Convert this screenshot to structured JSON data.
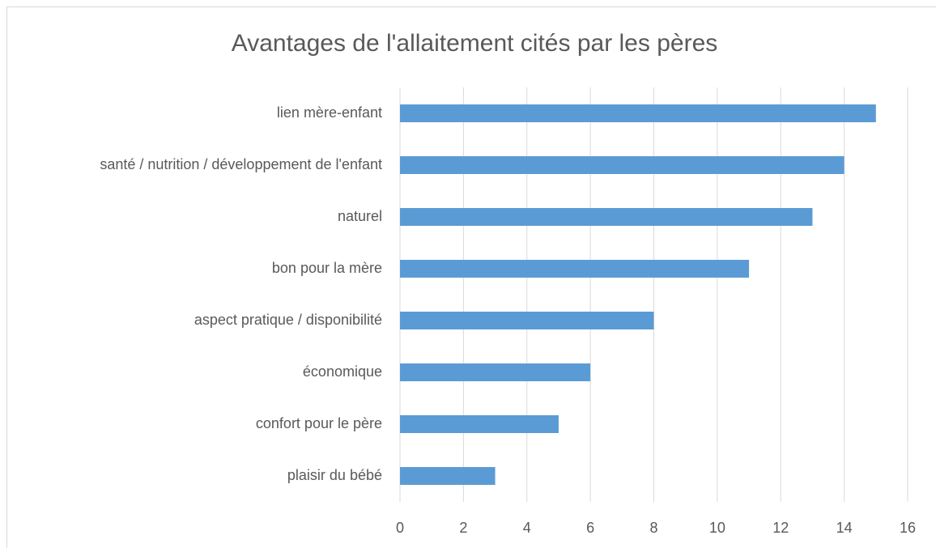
{
  "chart_data": {
    "type": "bar",
    "orientation": "horizontal",
    "title": "Avantages de l'allaitement cités par les pères",
    "categories": [
      "lien mère-enfant",
      "santé / nutrition / développement de l'enfant",
      "naturel",
      "bon pour la mère",
      "aspect pratique / disponibilité",
      "économique",
      "confort pour le père",
      "plaisir du bébé"
    ],
    "values": [
      15,
      14,
      13,
      11,
      8,
      6,
      5,
      3
    ],
    "color": "#5b9bd5",
    "xlim": [
      0,
      16
    ],
    "xticks": [
      0,
      2,
      4,
      6,
      8,
      10,
      12,
      14,
      16
    ],
    "grid": true
  }
}
